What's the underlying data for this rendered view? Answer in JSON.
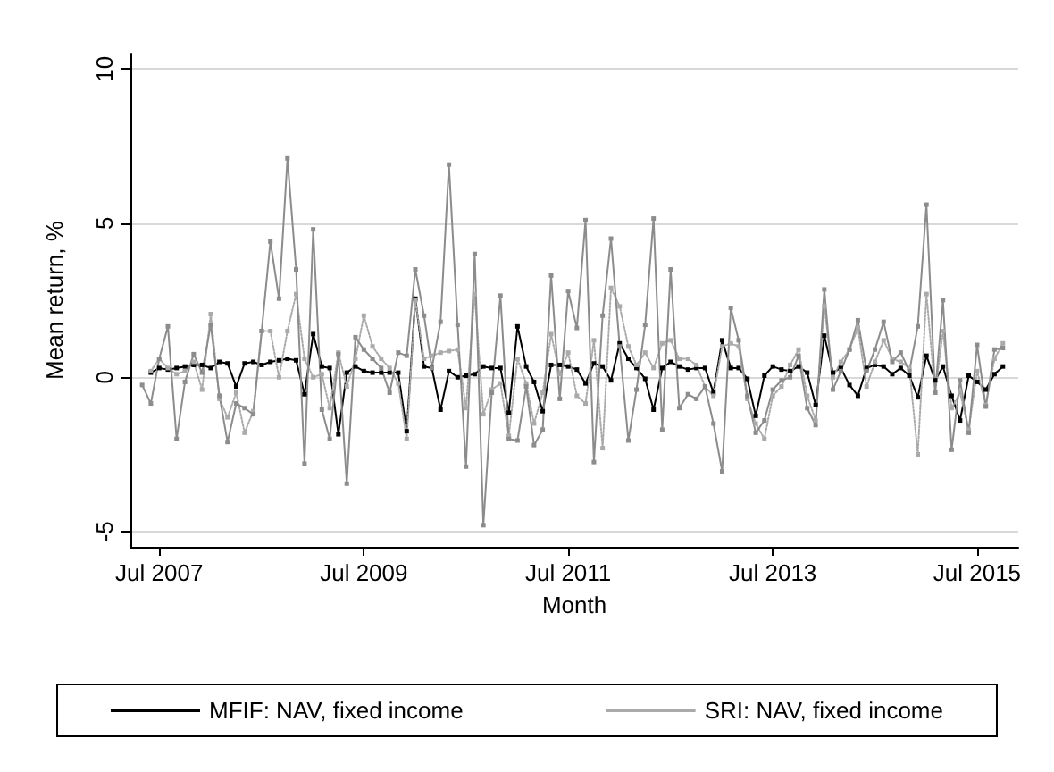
{
  "chart_data": {
    "type": "line",
    "xlabel": "Month",
    "ylabel": "Mean return, %",
    "x": [
      "2007-05",
      "2007-06",
      "2007-07",
      "2007-08",
      "2007-09",
      "2007-10",
      "2007-11",
      "2007-12",
      "2008-01",
      "2008-02",
      "2008-03",
      "2008-04",
      "2008-05",
      "2008-06",
      "2008-07",
      "2008-08",
      "2008-09",
      "2008-10",
      "2008-11",
      "2008-12",
      "2009-01",
      "2009-02",
      "2009-03",
      "2009-04",
      "2009-05",
      "2009-06",
      "2009-07",
      "2009-08",
      "2009-09",
      "2009-10",
      "2009-11",
      "2009-12",
      "2010-01",
      "2010-02",
      "2010-03",
      "2010-04",
      "2010-05",
      "2010-06",
      "2010-07",
      "2010-08",
      "2010-09",
      "2010-10",
      "2010-11",
      "2010-12",
      "2011-01",
      "2011-02",
      "2011-03",
      "2011-04",
      "2011-05",
      "2011-06",
      "2011-07",
      "2011-08",
      "2011-09",
      "2011-10",
      "2011-11",
      "2011-12",
      "2012-01",
      "2012-02",
      "2012-03",
      "2012-04",
      "2012-05",
      "2012-06",
      "2012-07",
      "2012-08",
      "2012-09",
      "2012-10",
      "2012-11",
      "2012-12",
      "2013-01",
      "2013-02",
      "2013-03",
      "2013-04",
      "2013-05",
      "2013-06",
      "2013-07",
      "2013-08",
      "2013-09",
      "2013-10",
      "2013-11",
      "2013-12",
      "2014-01",
      "2014-02",
      "2014-03",
      "2014-04",
      "2014-05",
      "2014-06",
      "2014-07",
      "2014-08",
      "2014-09",
      "2014-10",
      "2014-11",
      "2014-12",
      "2015-01",
      "2015-02",
      "2015-03",
      "2015-04",
      "2015-05",
      "2015-06",
      "2015-07",
      "2015-08",
      "2015-09",
      "2015-10"
    ],
    "series": [
      {
        "name": "MFIF: NAV, fixed income",
        "color": "#000000",
        "line_style": "solid",
        "values": [
          null,
          0.15,
          0.3,
          0.25,
          0.3,
          0.35,
          0.4,
          0.4,
          0.3,
          0.5,
          0.45,
          -0.3,
          0.45,
          0.5,
          0.4,
          0.5,
          0.55,
          0.6,
          0.55,
          -0.55,
          1.4,
          0.35,
          0.3,
          -1.85,
          0.15,
          0.35,
          0.2,
          0.15,
          0.15,
          0.15,
          0.15,
          -1.75,
          2.55,
          0.35,
          0.3,
          -1.05,
          0.2,
          0.0,
          0.05,
          0.1,
          0.35,
          0.3,
          0.3,
          -1.15,
          1.65,
          0.35,
          -0.15,
          -1.1,
          0.4,
          0.4,
          0.35,
          0.25,
          -0.2,
          0.45,
          0.35,
          -0.1,
          1.1,
          0.6,
          0.3,
          -0.05,
          -1.05,
          0.3,
          0.5,
          0.35,
          0.25,
          0.3,
          0.3,
          -0.5,
          1.2,
          0.3,
          0.3,
          -0.05,
          -1.25,
          0.05,
          0.35,
          0.25,
          0.2,
          0.35,
          0.15,
          -0.9,
          1.35,
          0.15,
          0.3,
          -0.25,
          -0.6,
          0.3,
          0.4,
          0.35,
          0.1,
          0.3,
          0.05,
          -0.65,
          0.7,
          -0.1,
          0.35,
          -0.6,
          -1.4,
          0.05,
          -0.15,
          -0.4,
          0.1,
          0.35
        ]
      },
      {
        "name": "SRI: NAV, fixed income",
        "color": "#aaaaaa",
        "line_style": "dotted",
        "values": [
          null,
          0.2,
          0.6,
          0.3,
          0.1,
          0.2,
          0.5,
          -0.4,
          2.05,
          -0.7,
          -1.3,
          -0.5,
          -1.8,
          -1.1,
          1.5,
          1.5,
          0.0,
          1.5,
          2.7,
          0.6,
          0.0,
          0.1,
          -1.0,
          0.8,
          -0.3,
          0.6,
          2.0,
          1.0,
          0.6,
          0.3,
          -0.2,
          -2.0,
          2.5,
          0.6,
          0.7,
          0.8,
          0.85,
          0.9,
          -1.0,
          2.7,
          -1.2,
          -0.4,
          -0.2,
          -1.9,
          0.6,
          -0.2,
          -1.5,
          -0.5,
          1.4,
          0.1,
          0.8,
          -0.6,
          -0.85,
          1.2,
          -2.3,
          2.9,
          2.3,
          1.0,
          0.4,
          0.8,
          0.3,
          1.1,
          1.2,
          0.6,
          0.6,
          0.4,
          -0.3,
          -0.6,
          1.0,
          1.1,
          1.0,
          -0.7,
          -1.5,
          -2.0,
          -0.6,
          -0.3,
          0.4,
          0.9,
          -0.6,
          -1.4,
          2.3,
          0.0,
          0.5,
          0.9,
          1.6,
          -0.3,
          0.5,
          1.2,
          0.6,
          0.5,
          0.3,
          -2.5,
          2.7,
          -0.5,
          1.5,
          -1.0,
          -0.5,
          -1.7,
          0.2,
          -0.9,
          0.6,
          1.1
        ]
      },
      {
        "color": "#8c8c8c",
        "line_style": "solid",
        "values": [
          -0.25,
          -0.85,
          0.6,
          1.65,
          -2.0,
          -0.15,
          0.75,
          0.15,
          1.7,
          -0.6,
          -2.1,
          -0.85,
          -1.0,
          -1.2,
          1.5,
          4.4,
          2.55,
          7.1,
          3.5,
          -2.8,
          4.8,
          -1.05,
          -2.0,
          0.75,
          -3.45,
          1.3,
          0.9,
          0.6,
          0.3,
          -0.5,
          0.8,
          0.7,
          3.5,
          2.0,
          0.3,
          1.8,
          6.9,
          1.7,
          -2.9,
          4.0,
          -4.8,
          -0.5,
          2.65,
          -2.0,
          -2.05,
          -0.3,
          -2.2,
          -1.7,
          3.3,
          -0.7,
          2.8,
          1.6,
          5.1,
          -2.75,
          2.0,
          4.5,
          1.0,
          -2.05,
          -0.4,
          1.7,
          5.15,
          -1.7,
          3.5,
          -1.0,
          -0.55,
          -0.7,
          -0.3,
          -1.5,
          -3.05,
          2.25,
          1.2,
          -0.6,
          -1.8,
          -1.4,
          -0.4,
          -0.1,
          0.0,
          0.7,
          -1.0,
          -1.55,
          2.85,
          -0.4,
          0.2,
          0.9,
          1.85,
          0.2,
          0.9,
          1.8,
          0.5,
          0.8,
          0.2,
          1.65,
          5.6,
          -0.5,
          2.5,
          -2.35,
          -0.1,
          -1.8,
          1.05,
          -0.95,
          0.9,
          0.95
        ]
      }
    ],
    "xlim": [
      "2007-03-20",
      "2015-11-25"
    ],
    "xticks": [
      {
        "value": "2007-07",
        "label": "Jul 2007"
      },
      {
        "value": "2009-07",
        "label": "Jul 2009"
      },
      {
        "value": "2011-07",
        "label": "Jul 2011"
      },
      {
        "value": "2013-07",
        "label": "Jul 2013"
      },
      {
        "value": "2015-07",
        "label": "Jul 2015"
      }
    ],
    "ylim": [
      -5.5,
      10.5
    ],
    "yticks": [
      -5,
      0,
      5,
      10
    ],
    "grid": "y",
    "legend": "bottom",
    "marker": "square"
  }
}
